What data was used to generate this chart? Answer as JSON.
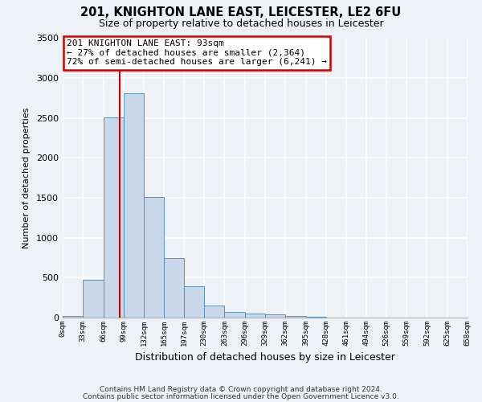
{
  "title": "201, KNIGHTON LANE EAST, LEICESTER, LE2 6FU",
  "subtitle": "Size of property relative to detached houses in Leicester",
  "xlabel": "Distribution of detached houses by size in Leicester",
  "ylabel": "Number of detached properties",
  "bar_color": "#c8d8ea",
  "bar_edge_color": "#6090b0",
  "background_color": "#eef2f7",
  "grid_color": "#ffffff",
  "bin_edges": [
    0,
    33,
    66,
    99,
    132,
    165,
    197,
    230,
    263,
    296,
    329,
    362,
    395,
    428,
    461,
    494,
    526,
    559,
    592,
    625,
    658
  ],
  "bar_heights": [
    18,
    475,
    2510,
    2810,
    1510,
    750,
    390,
    150,
    75,
    50,
    45,
    22,
    15,
    0,
    0,
    0,
    0,
    0,
    0,
    0
  ],
  "tick_labels": [
    "0sqm",
    "33sqm",
    "66sqm",
    "99sqm",
    "132sqm",
    "165sqm",
    "197sqm",
    "230sqm",
    "263sqm",
    "296sqm",
    "329sqm",
    "362sqm",
    "395sqm",
    "428sqm",
    "461sqm",
    "494sqm",
    "526sqm",
    "559sqm",
    "592sqm",
    "625sqm",
    "658sqm"
  ],
  "ylim": [
    0,
    3500
  ],
  "yticks": [
    0,
    500,
    1000,
    1500,
    2000,
    2500,
    3000,
    3500
  ],
  "vline_x": 93,
  "vline_color": "#cc0000",
  "annotation_title": "201 KNIGHTON LANE EAST: 93sqm",
  "annotation_line1": "← 27% of detached houses are smaller (2,364)",
  "annotation_line2": "72% of semi-detached houses are larger (6,241) →",
  "footer_line1": "Contains HM Land Registry data © Crown copyright and database right 2024.",
  "footer_line2": "Contains public sector information licensed under the Open Government Licence v3.0."
}
